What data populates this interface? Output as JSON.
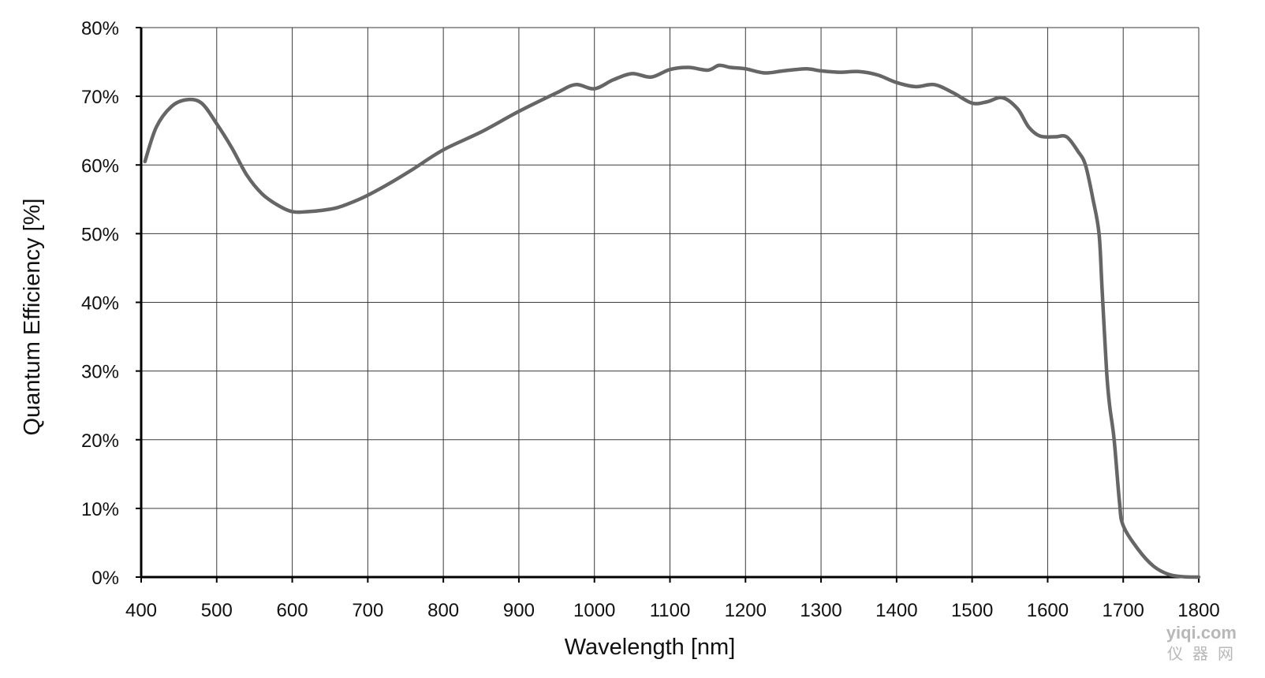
{
  "chart_data": {
    "type": "line",
    "xlabel": "Wavelength [nm]",
    "ylabel": "Quantum Efficiency [%]",
    "xlim": [
      400,
      1800
    ],
    "ylim": [
      0,
      80
    ],
    "x_ticks": [
      "400",
      "500",
      "600",
      "700",
      "800",
      "900",
      "1000",
      "1100",
      "1200",
      "1300",
      "1400",
      "1500",
      "1600",
      "1700",
      "1800"
    ],
    "y_ticks": [
      "0%",
      "10%",
      "20%",
      "30%",
      "40%",
      "50%",
      "60%",
      "70%",
      "80%"
    ],
    "grid": true,
    "line_color": "#666666",
    "series": [
      {
        "x": [
          405,
          420,
          440,
          460,
          480,
          500,
          520,
          540,
          560,
          580,
          600,
          620,
          640,
          660,
          680,
          700,
          730,
          760,
          800,
          850,
          900,
          950,
          975,
          1000,
          1025,
          1050,
          1075,
          1100,
          1125,
          1150,
          1165,
          1180,
          1200,
          1225,
          1250,
          1280,
          1300,
          1325,
          1350,
          1375,
          1400,
          1425,
          1450,
          1475,
          1500,
          1520,
          1540,
          1560,
          1575,
          1590,
          1610,
          1625,
          1640,
          1650,
          1660,
          1668,
          1672,
          1678,
          1682,
          1688,
          1695,
          1700,
          1720,
          1740,
          1760,
          1780,
          1800
        ],
        "y": [
          60.5,
          65.5,
          68.5,
          69.5,
          69.0,
          66.0,
          62.5,
          58.5,
          55.8,
          54.2,
          53.2,
          53.2,
          53.4,
          53.8,
          54.6,
          55.6,
          57.4,
          59.4,
          62.2,
          64.8,
          67.8,
          70.5,
          71.7,
          71.1,
          72.4,
          73.3,
          72.8,
          73.9,
          74.2,
          73.8,
          74.5,
          74.2,
          74.0,
          73.4,
          73.7,
          74.0,
          73.7,
          73.5,
          73.6,
          73.1,
          72.0,
          71.4,
          71.7,
          70.5,
          69.0,
          69.2,
          69.8,
          68.2,
          65.5,
          64.2,
          64.1,
          64.1,
          62.0,
          60.0,
          55.0,
          50.0,
          42.0,
          30.0,
          25.0,
          20.0,
          11.0,
          7.5,
          4.0,
          1.6,
          0.4,
          0.05,
          0.0
        ]
      }
    ]
  },
  "watermark": {
    "site": "yiqi.com",
    "cn": "仪器网"
  }
}
